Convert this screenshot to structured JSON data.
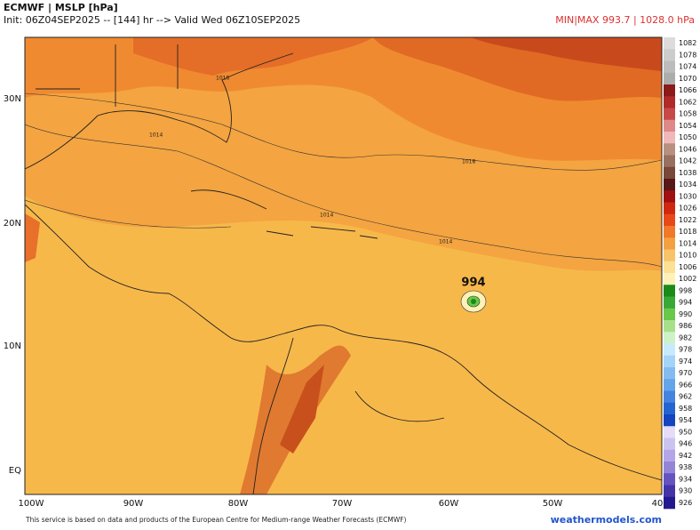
{
  "header": {
    "title": "ECMWF | MSLP [hPa]",
    "subtitle": "Init: 06Z04SEP2025 -- [144] hr --> Valid Wed 06Z10SEP2025",
    "minmax": "MIN|MAX 993.7 | 1028.0 hPa"
  },
  "map": {
    "x_labels": [
      "100W",
      "90W",
      "80W",
      "70W",
      "60W",
      "50W",
      "40"
    ],
    "y_labels": [
      "30N",
      "20N",
      "10N",
      "EQ"
    ],
    "contour_labels": [
      "1018",
      "1014",
      "1018",
      "1014",
      "1014",
      "994"
    ]
  },
  "colorbar": [
    {
      "label": 1082,
      "color": "#dcdcdc"
    },
    {
      "label": 1078,
      "color": "#cccccc"
    },
    {
      "label": 1074,
      "color": "#bcbcbc"
    },
    {
      "label": 1070,
      "color": "#acacac"
    },
    {
      "label": 1066,
      "color": "#8b1a1a"
    },
    {
      "label": 1062,
      "color": "#b02a2a"
    },
    {
      "label": 1058,
      "color": "#c84848"
    },
    {
      "label": 1054,
      "color": "#e08888"
    },
    {
      "label": 1050,
      "color": "#f0b8b8"
    },
    {
      "label": 1046,
      "color": "#b89080"
    },
    {
      "label": 1042,
      "color": "#987060"
    },
    {
      "label": 1038,
      "color": "#784838"
    },
    {
      "label": 1034,
      "color": "#581818"
    },
    {
      "label": 1030,
      "color": "#a01010"
    },
    {
      "label": 1026,
      "color": "#d02810"
    },
    {
      "label": 1022,
      "color": "#e84818"
    },
    {
      "label": 1018,
      "color": "#f07828"
    },
    {
      "label": 1014,
      "color": "#f4a040"
    },
    {
      "label": 1010,
      "color": "#f8c468"
    },
    {
      "label": 1006,
      "color": "#fce094"
    },
    {
      "label": 1002,
      "color": "#fff2b8"
    },
    {
      "label": 998,
      "color": "#1a8a1a"
    },
    {
      "label": 994,
      "color": "#38a838"
    },
    {
      "label": 990,
      "color": "#68c848"
    },
    {
      "label": 986,
      "color": "#a8e088"
    },
    {
      "label": 982,
      "color": "#cdf2c8"
    },
    {
      "label": 978,
      "color": "#c8eaff"
    },
    {
      "label": 974,
      "color": "#a4d4f8"
    },
    {
      "label": 970,
      "color": "#84bcf0"
    },
    {
      "label": 966,
      "color": "#64a4e8"
    },
    {
      "label": 962,
      "color": "#4484e0"
    },
    {
      "label": 958,
      "color": "#2464d0"
    },
    {
      "label": 954,
      "color": "#1444c0"
    },
    {
      "label": 950,
      "color": "#e4dcf8"
    },
    {
      "label": 946,
      "color": "#ccc4f0"
    },
    {
      "label": 942,
      "color": "#b4a4e8"
    },
    {
      "label": 938,
      "color": "#9484d8"
    },
    {
      "label": 934,
      "color": "#6454c0"
    },
    {
      "label": 930,
      "color": "#4434a8"
    },
    {
      "label": 926,
      "color": "#241890"
    }
  ],
  "footer": {
    "credit": "This service is based on data and products of the European Centre for Medium-range Weather Forecasts (ECMWF)",
    "site": "weathermodels.com"
  }
}
